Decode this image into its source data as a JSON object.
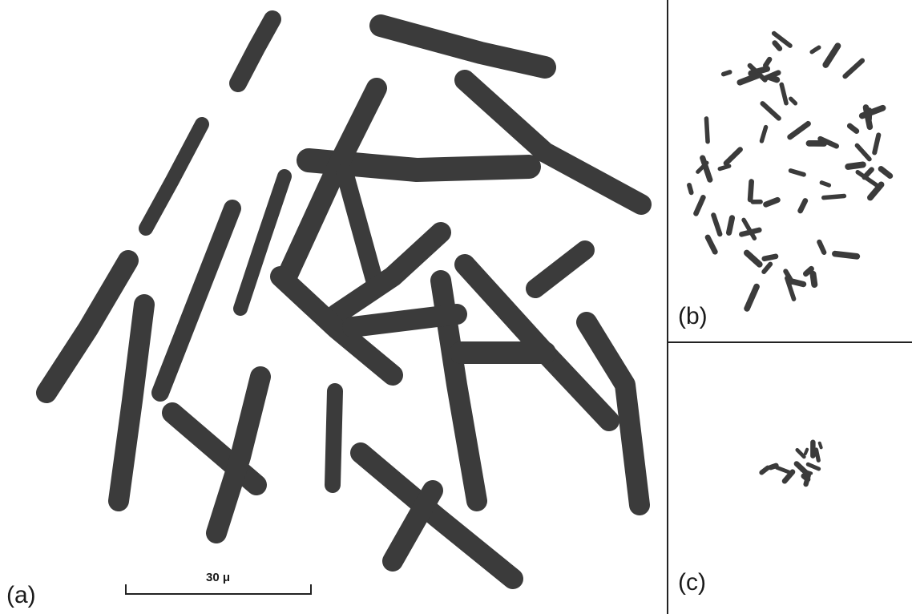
{
  "panels": [
    {
      "label": "(a)"
    },
    {
      "label": "(b)"
    },
    {
      "label": "(c)"
    }
  ],
  "scale_bar": {
    "label": "30 μ"
  }
}
